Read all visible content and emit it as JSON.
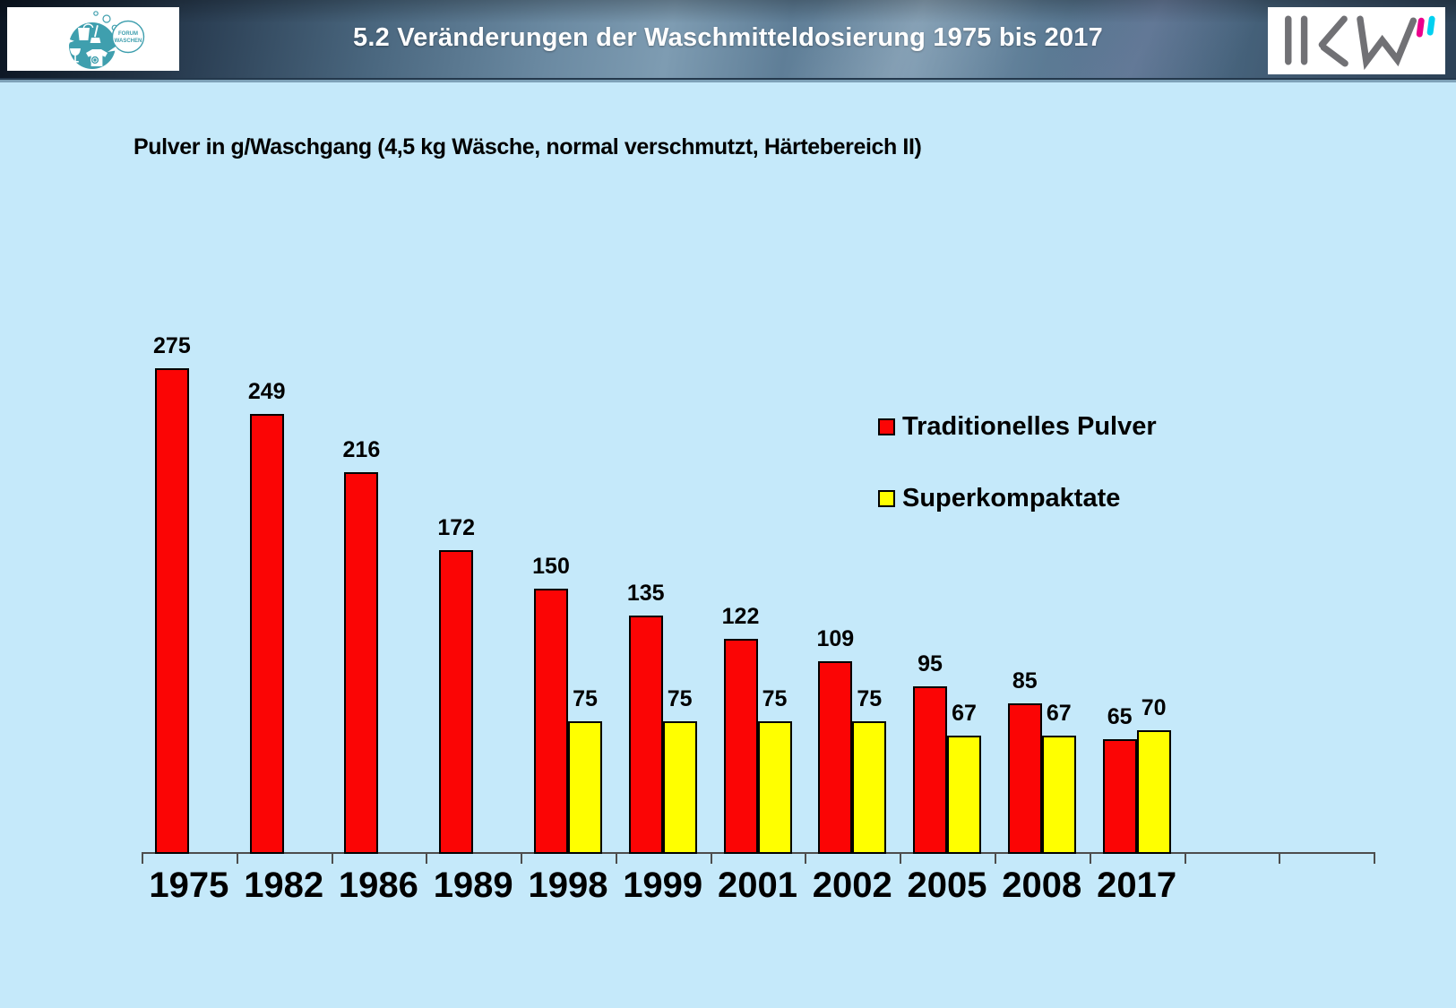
{
  "header": {
    "title": "5.2 Veränderungen der Waschmitteldosierung 1975 bis 2017",
    "logo_left": {
      "bubble_line1": "FORUM",
      "bubble_line2": "WASCHEN"
    },
    "logo_right": {
      "name": "IKW"
    }
  },
  "colors": {
    "slide_background": "#c5e9fa",
    "bar_red": "#fb0505",
    "bar_yellow": "#ffff00",
    "bar_border": "#000000",
    "axis": "#4d4d4d",
    "header_text": "#ffffff",
    "logo_teal": "#3f9fae",
    "logo_gray": "#717175",
    "logo_magenta": "#ec008c",
    "logo_cyan": "#00d0f0"
  },
  "chart_data": {
    "type": "bar",
    "title": "Pulver in g/Waschgang (4,5 kg Wäsche, normal verschmutzt, Härtebereich II)",
    "categories": [
      "1975",
      "1982",
      "1986",
      "1989",
      "1998",
      "1999",
      "2001",
      "2002",
      "2005",
      "2008",
      "2017"
    ],
    "series": [
      {
        "name": "Traditionelles Pulver",
        "color": "#fb0505",
        "values": [
          275,
          249,
          216,
          172,
          150,
          135,
          122,
          109,
          95,
          85,
          65
        ]
      },
      {
        "name": "Superkompaktate",
        "color": "#ffff00",
        "values": [
          null,
          null,
          null,
          null,
          75,
          75,
          75,
          75,
          67,
          67,
          70
        ]
      }
    ],
    "xlabel": "",
    "ylabel": "Pulver in g/Waschgang",
    "ylim": [
      0,
      275
    ],
    "extra_empty_categories": 2,
    "grid": false,
    "value_labels": true,
    "legend_position": "right"
  }
}
